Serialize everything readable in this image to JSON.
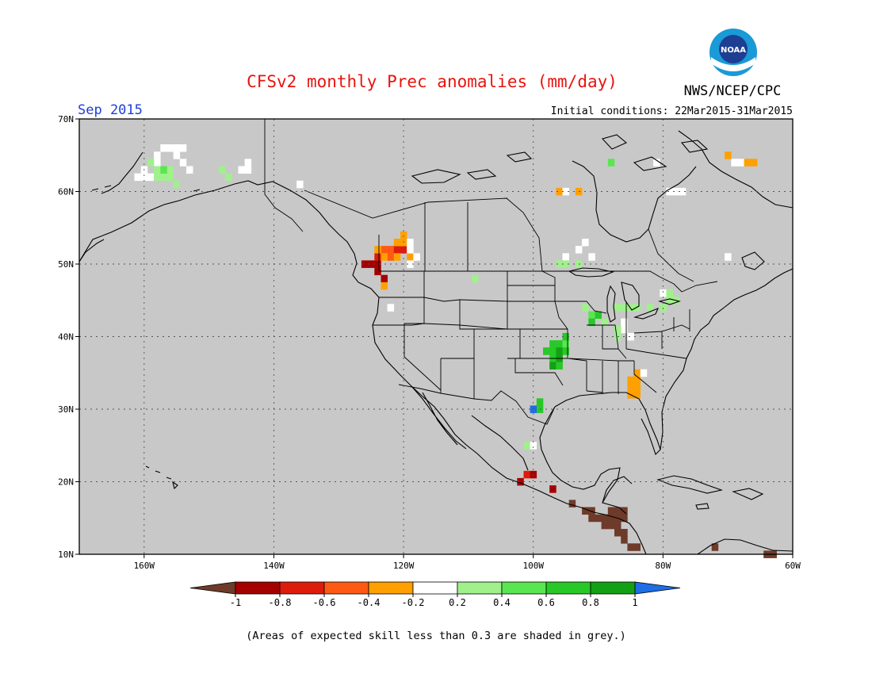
{
  "title": "CFSv2 monthly Prec anomalies (mm/day)",
  "agency": "NWS/NCEP/CPC",
  "logo_text": "NOAA",
  "valid_month": "Sep 2015",
  "initial_conditions": "Initial conditions: 22Mar2015-31Mar2015",
  "map": {
    "background_color": "#c8c8c8",
    "lon_range": [
      -170,
      -60
    ],
    "lat_range": [
      10,
      70
    ],
    "lat_ticks": [
      {
        "value": 70,
        "label": "70N"
      },
      {
        "value": 60,
        "label": "60N"
      },
      {
        "value": 50,
        "label": "50N"
      },
      {
        "value": 40,
        "label": "40N"
      },
      {
        "value": 30,
        "label": "30N"
      },
      {
        "value": 20,
        "label": "20N"
      },
      {
        "value": 10,
        "label": "10N"
      }
    ],
    "lon_ticks": [
      {
        "value": -160,
        "label": "160W"
      },
      {
        "value": -140,
        "label": "140W"
      },
      {
        "value": -120,
        "label": "120W"
      },
      {
        "value": -100,
        "label": "100W"
      },
      {
        "value": -80,
        "label": "80W"
      },
      {
        "value": -60,
        "label": "60W"
      }
    ]
  },
  "colorbar": {
    "labels": [
      "-1",
      "-0.8",
      "-0.6",
      "-0.4",
      "-0.2",
      "0.2",
      "0.4",
      "0.6",
      "0.8",
      "1"
    ],
    "under_color": "#6e3b2a",
    "over_color": "#1e6ee6",
    "colors": [
      "#a50000",
      "#dd1c0c",
      "#ff5a14",
      "#ffa000",
      "#ffffff",
      "#a0f08c",
      "#5ae650",
      "#28c828",
      "#14a014"
    ]
  },
  "anomalies": [
    {
      "lat": 50,
      "lon": -126,
      "value": -0.9
    },
    {
      "lat": 50,
      "lon": -125,
      "value": -0.9
    },
    {
      "lat": 50,
      "lon": -124,
      "value": -0.9
    },
    {
      "lat": 49,
      "lon": -124,
      "value": -0.9
    },
    {
      "lat": 48,
      "lon": -123,
      "value": -0.9
    },
    {
      "lat": 51,
      "lon": -124,
      "value": -0.7
    },
    {
      "lat": 52,
      "lon": -123,
      "value": -0.5
    },
    {
      "lat": 52,
      "lon": -122,
      "value": -0.5
    },
    {
      "lat": 51,
      "lon": -122,
      "value": -0.5
    },
    {
      "lat": 52,
      "lon": -121,
      "value": -0.7
    },
    {
      "lat": 52,
      "lon": -120,
      "value": -0.7
    },
    {
      "lat": 53,
      "lon": -121,
      "value": -0.3
    },
    {
      "lat": 53,
      "lon": -120,
      "value": -0.3
    },
    {
      "lat": 54,
      "lon": -120,
      "value": -0.3
    },
    {
      "lat": 51,
      "lon": -123,
      "value": -0.3
    },
    {
      "lat": 52,
      "lon": -124,
      "value": -0.3
    },
    {
      "lat": 51,
      "lon": -121,
      "value": -0.3
    },
    {
      "lat": 51,
      "lon": -119,
      "value": -0.3
    },
    {
      "lat": 47,
      "lon": -123,
      "value": -0.3
    },
    {
      "lat": 53,
      "lon": -119,
      "value": 0.0
    },
    {
      "lat": 52,
      "lon": -119,
      "value": 0.0
    },
    {
      "lat": 51,
      "lon": -118,
      "value": 0.0
    },
    {
      "lat": 50,
      "lon": -119,
      "value": 0.0
    },
    {
      "lat": 44,
      "lon": -122,
      "value": 0.0
    },
    {
      "lat": 66,
      "lon": -157,
      "value": 0.0
    },
    {
      "lat": 66,
      "lon": -156,
      "value": 0.0
    },
    {
      "lat": 66,
      "lon": -155,
      "value": 0.0
    },
    {
      "lat": 66,
      "lon": -154,
      "value": 0.0
    },
    {
      "lat": 65,
      "lon": -158,
      "value": 0.0
    },
    {
      "lat": 65,
      "lon": -155,
      "value": 0.0
    },
    {
      "lat": 64,
      "lon": -158,
      "value": 0.0
    },
    {
      "lat": 64,
      "lon": -154,
      "value": 0.0
    },
    {
      "lat": 63,
      "lon": -160,
      "value": 0.0
    },
    {
      "lat": 62,
      "lon": -161,
      "value": 0.0
    },
    {
      "lat": 62,
      "lon": -160,
      "value": 0.0
    },
    {
      "lat": 62,
      "lon": -159,
      "value": 0.0
    },
    {
      "lat": 63,
      "lon": -153,
      "value": 0.0
    },
    {
      "lat": 64,
      "lon": -159,
      "value": 0.3
    },
    {
      "lat": 63,
      "lon": -158,
      "value": 0.3
    },
    {
      "lat": 63,
      "lon": -156,
      "value": 0.3
    },
    {
      "lat": 62,
      "lon": -157,
      "value": 0.3
    },
    {
      "lat": 62,
      "lon": -156,
      "value": 0.3
    },
    {
      "lat": 61,
      "lon": -155,
      "value": 0.3
    },
    {
      "lat": 63,
      "lon": -157,
      "value": 0.5
    },
    {
      "lat": 62,
      "lon": -158,
      "value": 0.3
    },
    {
      "lat": 63,
      "lon": -148,
      "value": 0.3
    },
    {
      "lat": 62,
      "lon": -147,
      "value": 0.3
    },
    {
      "lat": 63,
      "lon": -145,
      "value": 0.0
    },
    {
      "lat": 63,
      "lon": -144,
      "value": 0.0
    },
    {
      "lat": 64,
      "lon": -144,
      "value": 0.0
    },
    {
      "lat": 61,
      "lon": -136,
      "value": 0.0
    },
    {
      "lat": 64,
      "lon": -88,
      "value": 0.5
    },
    {
      "lat": 60,
      "lon": -96,
      "value": -0.3
    },
    {
      "lat": 60,
      "lon": -95,
      "value": 0.0
    },
    {
      "lat": 60,
      "lon": -93,
      "value": -0.3
    },
    {
      "lat": 52,
      "lon": -93,
      "value": 0.0
    },
    {
      "lat": 53,
      "lon": -92,
      "value": 0.0
    },
    {
      "lat": 51,
      "lon": -91,
      "value": 0.0
    },
    {
      "lat": 51,
      "lon": -95,
      "value": 0.0
    },
    {
      "lat": 50,
      "lon": -96,
      "value": 0.3
    },
    {
      "lat": 50,
      "lon": -95,
      "value": 0.3
    },
    {
      "lat": 50,
      "lon": -93,
      "value": 0.3
    },
    {
      "lat": 48,
      "lon": -109,
      "value": 0.3
    },
    {
      "lat": 44,
      "lon": -92,
      "value": 0.3
    },
    {
      "lat": 43,
      "lon": -91,
      "value": 0.5
    },
    {
      "lat": 43,
      "lon": -90,
      "value": 0.7
    },
    {
      "lat": 42,
      "lon": -91,
      "value": 0.7
    },
    {
      "lat": 42,
      "lon": -89,
      "value": 0.3
    },
    {
      "lat": 44,
      "lon": -87,
      "value": 0.3
    },
    {
      "lat": 44,
      "lon": -86,
      "value": 0.3
    },
    {
      "lat": 44,
      "lon": -85,
      "value": 0.3
    },
    {
      "lat": 44,
      "lon": -84,
      "value": 0.3
    },
    {
      "lat": 44,
      "lon": -82,
      "value": 0.3
    },
    {
      "lat": 44,
      "lon": -80,
      "value": 0.3
    },
    {
      "lat": 45,
      "lon": -79,
      "value": 0.3
    },
    {
      "lat": 42,
      "lon": -86,
      "value": 0.0
    },
    {
      "lat": 41,
      "lon": -86,
      "value": 0.0
    },
    {
      "lat": 40,
      "lon": -85,
      "value": 0.0
    },
    {
      "lat": 41,
      "lon": -87,
      "value": 0.3
    },
    {
      "lat": 40,
      "lon": -87,
      "value": 0.3
    },
    {
      "lat": 39,
      "lon": -97,
      "value": 0.7
    },
    {
      "lat": 39,
      "lon": -96,
      "value": 0.7
    },
    {
      "lat": 39,
      "lon": -95,
      "value": 0.5
    },
    {
      "lat": 38,
      "lon": -98,
      "value": 0.7
    },
    {
      "lat": 38,
      "lon": -97,
      "value": 0.7
    },
    {
      "lat": 38,
      "lon": -96,
      "value": 0.9
    },
    {
      "lat": 38,
      "lon": -95,
      "value": 0.7
    },
    {
      "lat": 37,
      "lon": -97,
      "value": 0.7
    },
    {
      "lat": 37,
      "lon": -96,
      "value": 0.9
    },
    {
      "lat": 36,
      "lon": -97,
      "value": 0.9
    },
    {
      "lat": 36,
      "lon": -96,
      "value": 0.7
    },
    {
      "lat": 40,
      "lon": -95,
      "value": 0.7
    },
    {
      "lat": 35,
      "lon": -84,
      "value": -0.3
    },
    {
      "lat": 35,
      "lon": -83,
      "value": 0.0
    },
    {
      "lat": 34,
      "lon": -85,
      "value": -0.3
    },
    {
      "lat": 34,
      "lon": -84,
      "value": -0.3
    },
    {
      "lat": 33,
      "lon": -85,
      "value": -0.3
    },
    {
      "lat": 33,
      "lon": -84,
      "value": -0.3
    },
    {
      "lat": 32,
      "lon": -85,
      "value": -0.3
    },
    {
      "lat": 32,
      "lon": -84,
      "value": -0.3
    },
    {
      "lat": 31,
      "lon": -99,
      "value": 0.7
    },
    {
      "lat": 30,
      "lon": -99,
      "value": 0.7
    },
    {
      "lat": 30,
      "lon": -100,
      "value": 1.1
    },
    {
      "lat": 25,
      "lon": -101,
      "value": 0.3
    },
    {
      "lat": 25,
      "lon": -100,
      "value": 0.0
    },
    {
      "lat": 20,
      "lon": -102,
      "value": -0.9
    },
    {
      "lat": 21,
      "lon": -101,
      "value": -0.7
    },
    {
      "lat": 21,
      "lon": -100,
      "value": -0.9
    },
    {
      "lat": 19,
      "lon": -97,
      "value": -0.9
    },
    {
      "lat": 17,
      "lon": -94,
      "value": -1.1
    },
    {
      "lat": 16,
      "lon": -92,
      "value": -1.1
    },
    {
      "lat": 16,
      "lon": -91,
      "value": -1.1
    },
    {
      "lat": 16,
      "lon": -88,
      "value": -1.1
    },
    {
      "lat": 16,
      "lon": -87,
      "value": -1.1
    },
    {
      "lat": 16,
      "lon": -86,
      "value": -1.1
    },
    {
      "lat": 15,
      "lon": -91,
      "value": -1.1
    },
    {
      "lat": 15,
      "lon": -90,
      "value": -1.1
    },
    {
      "lat": 15,
      "lon": -89,
      "value": -1.1
    },
    {
      "lat": 15,
      "lon": -88,
      "value": -1.1
    },
    {
      "lat": 15,
      "lon": -87,
      "value": -1.1
    },
    {
      "lat": 15,
      "lon": -86,
      "value": -1.1
    },
    {
      "lat": 14,
      "lon": -89,
      "value": -1.1
    },
    {
      "lat": 14,
      "lon": -88,
      "value": -1.1
    },
    {
      "lat": 14,
      "lon": -87,
      "value": -1.1
    },
    {
      "lat": 13,
      "lon": -87,
      "value": -1.1
    },
    {
      "lat": 13,
      "lon": -86,
      "value": -1.1
    },
    {
      "lat": 12,
      "lon": -86,
      "value": -1.1
    },
    {
      "lat": 11,
      "lon": -85,
      "value": -1.1
    },
    {
      "lat": 11,
      "lon": -84,
      "value": -1.1
    },
    {
      "lat": 11,
      "lon": -72,
      "value": -1.1
    },
    {
      "lat": 10,
      "lon": -64,
      "value": -1.1
    },
    {
      "lat": 10,
      "lon": -63,
      "value": -1.1
    },
    {
      "lat": 65,
      "lon": -70,
      "value": -0.3
    },
    {
      "lat": 64,
      "lon": -69,
      "value": 0.0
    },
    {
      "lat": 64,
      "lon": -68,
      "value": 0.0
    },
    {
      "lat": 64,
      "lon": -67,
      "value": -0.3
    },
    {
      "lat": 64,
      "lon": -66,
      "value": -0.3
    },
    {
      "lat": 64,
      "lon": -81,
      "value": 0.0
    },
    {
      "lat": 60,
      "lon": -79,
      "value": 0.0
    },
    {
      "lat": 60,
      "lon": -78,
      "value": 0.0
    },
    {
      "lat": 60,
      "lon": -77,
      "value": 0.0
    },
    {
      "lat": 51,
      "lon": -70,
      "value": 0.0
    },
    {
      "lat": 46,
      "lon": -80,
      "value": 0.0
    },
    {
      "lat": 46,
      "lon": -79,
      "value": 0.3
    },
    {
      "lat": 45,
      "lon": -78,
      "value": 0.3
    }
  ],
  "footnote": "(Areas of expected skill less than 0.3 are shaded in grey.)"
}
